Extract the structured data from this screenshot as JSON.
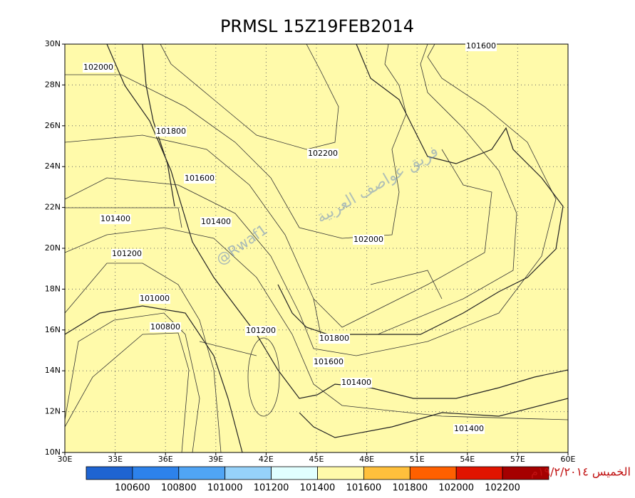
{
  "title": "PRMSL  15Z19FEB2014",
  "lat_labels": [
    "30N",
    "28N",
    "26N",
    "24N",
    "22N",
    "20N",
    "18N",
    "16N",
    "14N",
    "12N",
    "10N"
  ],
  "lon_labels": [
    "30E",
    "33E",
    "36E",
    "39E",
    "42E",
    "45E",
    "48E",
    "51E",
    "54E",
    "57E",
    "60E"
  ],
  "contour_labels": [
    "102000",
    "101800",
    "101600",
    "101400",
    "101200",
    "101000",
    "100800",
    "101400",
    "102200",
    "102000",
    "101800",
    "101600",
    "101400",
    "101200",
    "101600",
    "101400"
  ],
  "colorbar": {
    "colors": [
      "#1e64d2",
      "#2d82eb",
      "#50a5f5",
      "#96d2fa",
      "#e1ffff",
      "#fffaaa",
      "#ffc03c",
      "#ff6000",
      "#e11400",
      "#a50000"
    ],
    "labels": [
      "100600",
      "100800",
      "101000",
      "101200",
      "101400",
      "101600",
      "101800",
      "102000",
      "102200"
    ]
  },
  "watermark": {
    "handle": "@Rwaf1",
    "team": "فريق عواصف العربية",
    "date": "الخميس ١٩/٢/٢٠١٤م"
  }
}
